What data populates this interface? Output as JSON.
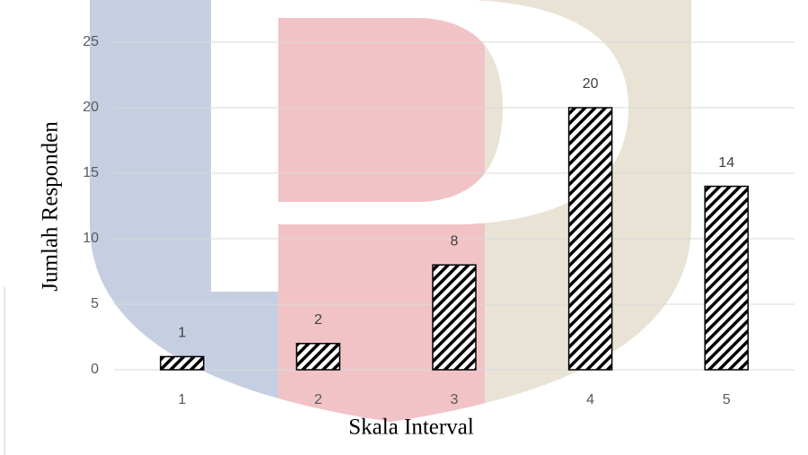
{
  "chart_data": {
    "type": "bar",
    "x_label": "Skala Interval",
    "y_label": "Jumlah Responden",
    "categories": [
      "1",
      "2",
      "3",
      "4",
      "5"
    ],
    "values": [
      1,
      2,
      8,
      20,
      14
    ],
    "color": "#000000",
    "ylim": [
      0,
      25
    ],
    "yticks": [
      0,
      5,
      10,
      15,
      20,
      25
    ],
    "grid": true
  }
}
